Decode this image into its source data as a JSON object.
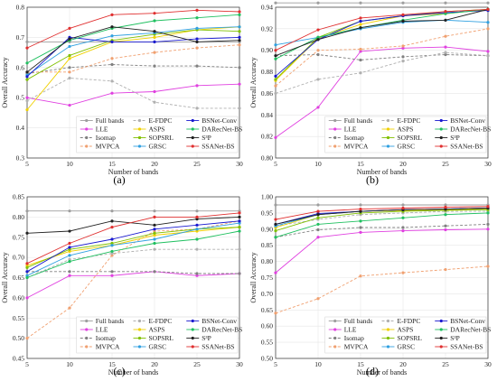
{
  "chart_data": [
    {
      "type": "line",
      "panel_label": "(a)",
      "xlabel": "Number of bands",
      "ylabel": "Overall Accuracy",
      "x": [
        5,
        10,
        15,
        20,
        25,
        30
      ],
      "xlim": [
        5,
        30
      ],
      "ylim": [
        0.3,
        0.8
      ],
      "yticks": [
        "0.3",
        "0.4",
        "0.5",
        "0.6",
        "0.7",
        "0.8"
      ],
      "series": [
        {
          "name": "Full bands",
          "color": "#9e9e9e",
          "dash": "",
          "values": [
            0.685,
            0.685,
            0.685,
            0.685,
            0.685,
            0.685
          ]
        },
        {
          "name": "LLE",
          "color": "#e040e0",
          "dash": "",
          "values": [
            0.5,
            0.475,
            0.515,
            0.52,
            0.54,
            0.545
          ]
        },
        {
          "name": "Isomap",
          "color": "#808080",
          "dash": "3,2",
          "values": [
            0.58,
            0.6,
            0.61,
            0.605,
            0.605,
            0.6
          ]
        },
        {
          "name": "MVPCA",
          "color": "#f0a070",
          "dash": "3,2",
          "values": [
            0.585,
            0.585,
            0.63,
            0.65,
            0.665,
            0.675
          ]
        },
        {
          "name": "E-FDPC",
          "color": "#b0b0b0",
          "dash": "3,2",
          "values": [
            0.49,
            0.565,
            0.555,
            0.485,
            0.465,
            0.465
          ]
        },
        {
          "name": "ASPS",
          "color": "#f0d000",
          "dash": "",
          "values": [
            0.46,
            0.63,
            0.685,
            0.7,
            0.725,
            0.735
          ]
        },
        {
          "name": "SOPSRL",
          "color": "#80c000",
          "dash": "",
          "values": [
            0.56,
            0.64,
            0.69,
            0.71,
            0.725,
            0.72
          ]
        },
        {
          "name": "GRSC",
          "color": "#30a0e0",
          "dash": "",
          "values": [
            0.575,
            0.67,
            0.705,
            0.715,
            0.73,
            0.735
          ]
        },
        {
          "name": "BSNet-Conv",
          "color": "#1a1ad0",
          "dash": "",
          "values": [
            0.57,
            0.7,
            0.685,
            0.685,
            0.695,
            0.7
          ]
        },
        {
          "name": "DARecNet-BS",
          "color": "#20c060",
          "dash": "",
          "values": [
            0.615,
            0.69,
            0.73,
            0.755,
            0.765,
            0.775
          ]
        },
        {
          "name": "S³P",
          "color": "#202020",
          "dash": "",
          "values": [
            0.585,
            0.695,
            0.735,
            0.72,
            0.685,
            0.69
          ]
        },
        {
          "name": "SSANet-BS",
          "color": "#e03030",
          "dash": "",
          "values": [
            0.665,
            0.73,
            0.775,
            0.78,
            0.79,
            0.785
          ]
        }
      ]
    },
    {
      "type": "line",
      "panel_label": "(b)",
      "xlabel": "Number of bands",
      "ylabel": "Overall Accuracy",
      "x": [
        5,
        10,
        15,
        20,
        25,
        30
      ],
      "xlim": [
        5,
        30
      ],
      "ylim": [
        0.8,
        0.94
      ],
      "yticks": [
        "0.80",
        "0.82",
        "0.84",
        "0.86",
        "0.88",
        "0.90",
        "0.92",
        "0.94"
      ],
      "series": [
        {
          "name": "Full bands",
          "color": "#9e9e9e",
          "dash": "",
          "values": [
            0.944,
            0.944,
            0.944,
            0.944,
            0.944,
            0.944
          ]
        },
        {
          "name": "LLE",
          "color": "#e040e0",
          "dash": "",
          "values": [
            0.819,
            0.847,
            0.899,
            0.902,
            0.903,
            0.899
          ]
        },
        {
          "name": "Isomap",
          "color": "#808080",
          "dash": "3,2",
          "values": [
            0.895,
            0.896,
            0.891,
            0.894,
            0.896,
            0.895
          ]
        },
        {
          "name": "MVPCA",
          "color": "#f0a070",
          "dash": "3,2",
          "values": [
            0.867,
            0.9,
            0.901,
            0.904,
            0.913,
            0.92
          ]
        },
        {
          "name": "E-FDPC",
          "color": "#b0b0b0",
          "dash": "3,2",
          "values": [
            0.86,
            0.873,
            0.879,
            0.89,
            0.898,
            0.895
          ]
        },
        {
          "name": "ASPS",
          "color": "#f0d000",
          "dash": "",
          "values": [
            0.872,
            0.911,
            0.924,
            0.932,
            0.934,
            0.938
          ]
        },
        {
          "name": "SOPSRL",
          "color": "#80c000",
          "dash": "",
          "values": [
            0.873,
            0.912,
            0.927,
            0.932,
            0.936,
            0.938
          ]
        },
        {
          "name": "GRSC",
          "color": "#30a0e0",
          "dash": "",
          "values": [
            0.905,
            0.912,
            0.92,
            0.926,
            0.928,
            0.926
          ]
        },
        {
          "name": "BSNet-Conv",
          "color": "#1a1ad0",
          "dash": "",
          "values": [
            0.876,
            0.91,
            0.927,
            0.932,
            0.935,
            0.937
          ]
        },
        {
          "name": "DARecNet-BS",
          "color": "#20c060",
          "dash": "",
          "values": [
            0.892,
            0.912,
            0.921,
            0.928,
            0.934,
            0.938
          ]
        },
        {
          "name": "S³P",
          "color": "#202020",
          "dash": "",
          "values": [
            0.895,
            0.91,
            0.921,
            0.927,
            0.928,
            0.938
          ]
        },
        {
          "name": "SSANet-BS",
          "color": "#e03030",
          "dash": "",
          "values": [
            0.9,
            0.919,
            0.93,
            0.933,
            0.936,
            0.938
          ]
        }
      ]
    },
    {
      "type": "line",
      "panel_label": "(c)",
      "xlabel": "Number of bands",
      "ylabel": "Overall Accuracy",
      "x": [
        5,
        10,
        15,
        20,
        25,
        30
      ],
      "xlim": [
        5,
        30
      ],
      "ylim": [
        0.45,
        0.85
      ],
      "yticks": [
        "0.45",
        "0.50",
        "0.55",
        "0.60",
        "0.65",
        "0.70",
        "0.75",
        "0.80",
        "0.85"
      ],
      "series": [
        {
          "name": "Full bands",
          "color": "#9e9e9e",
          "dash": "",
          "values": [
            0.815,
            0.815,
            0.815,
            0.815,
            0.815,
            0.815
          ]
        },
        {
          "name": "LLE",
          "color": "#e040e0",
          "dash": "",
          "values": [
            0.6,
            0.655,
            0.655,
            0.665,
            0.655,
            0.66
          ]
        },
        {
          "name": "Isomap",
          "color": "#808080",
          "dash": "3,2",
          "values": [
            0.665,
            0.665,
            0.665,
            0.665,
            0.66,
            0.66
          ]
        },
        {
          "name": "MVPCA",
          "color": "#f0a070",
          "dash": "3,2",
          "values": [
            0.5,
            0.575,
            0.705,
            0.765,
            0.77,
            0.79
          ]
        },
        {
          "name": "E-FDPC",
          "color": "#b0b0b0",
          "dash": "3,2",
          "values": [
            0.65,
            0.695,
            0.71,
            0.72,
            0.72,
            0.72
          ]
        },
        {
          "name": "ASPS",
          "color": "#f0d000",
          "dash": "",
          "values": [
            0.68,
            0.715,
            0.73,
            0.755,
            0.765,
            0.775
          ]
        },
        {
          "name": "SOPSRL",
          "color": "#80c000",
          "dash": "",
          "values": [
            0.675,
            0.72,
            0.735,
            0.76,
            0.77,
            0.775
          ]
        },
        {
          "name": "GRSC",
          "color": "#30a0e0",
          "dash": "",
          "values": [
            0.655,
            0.705,
            0.73,
            0.745,
            0.77,
            0.785
          ]
        },
        {
          "name": "BSNet-Conv",
          "color": "#1a1ad0",
          "dash": "",
          "values": [
            0.665,
            0.725,
            0.745,
            0.77,
            0.78,
            0.79
          ]
        },
        {
          "name": "DARecNet-BS",
          "color": "#20c060",
          "dash": "",
          "values": [
            0.65,
            0.69,
            0.715,
            0.735,
            0.745,
            0.765
          ]
        },
        {
          "name": "S³P",
          "color": "#202020",
          "dash": "",
          "values": [
            0.76,
            0.765,
            0.79,
            0.78,
            0.795,
            0.8
          ]
        },
        {
          "name": "SSANet-BS",
          "color": "#e03030",
          "dash": "",
          "values": [
            0.685,
            0.735,
            0.775,
            0.8,
            0.8,
            0.81
          ]
        }
      ]
    },
    {
      "type": "line",
      "panel_label": "(d)",
      "xlabel": "Number of bands",
      "ylabel": "Overall Accuracy",
      "x": [
        5,
        10,
        15,
        20,
        25,
        30
      ],
      "xlim": [
        5,
        30
      ],
      "ylim": [
        0.5,
        1.0
      ],
      "yticks": [
        "0.50",
        "0.55",
        "0.60",
        "0.65",
        "0.70",
        "0.75",
        "0.80",
        "0.85",
        "0.90",
        "0.95",
        "1.00"
      ],
      "series": [
        {
          "name": "Full bands",
          "color": "#9e9e9e",
          "dash": "",
          "values": [
            0.975,
            0.975,
            0.975,
            0.975,
            0.975,
            0.975
          ]
        },
        {
          "name": "LLE",
          "color": "#e040e0",
          "dash": "",
          "values": [
            0.765,
            0.875,
            0.89,
            0.895,
            0.898,
            0.9
          ]
        },
        {
          "name": "Isomap",
          "color": "#808080",
          "dash": "3,2",
          "values": [
            0.875,
            0.898,
            0.905,
            0.905,
            0.91,
            0.915
          ]
        },
        {
          "name": "MVPCA",
          "color": "#f0a070",
          "dash": "3,2",
          "values": [
            0.64,
            0.685,
            0.755,
            0.765,
            0.775,
            0.785
          ]
        },
        {
          "name": "E-FDPC",
          "color": "#b0b0b0",
          "dash": "3,2",
          "values": [
            0.91,
            0.93,
            0.945,
            0.95,
            0.955,
            0.955
          ]
        },
        {
          "name": "ASPS",
          "color": "#f0d000",
          "dash": "",
          "values": [
            0.905,
            0.945,
            0.955,
            0.958,
            0.96,
            0.962
          ]
        },
        {
          "name": "SOPSRL",
          "color": "#80c000",
          "dash": "",
          "values": [
            0.895,
            0.935,
            0.95,
            0.955,
            0.958,
            0.96
          ]
        },
        {
          "name": "GRSC",
          "color": "#30a0e0",
          "dash": "",
          "values": [
            0.91,
            0.945,
            0.955,
            0.96,
            0.962,
            0.965
          ]
        },
        {
          "name": "BSNet-Conv",
          "color": "#1a1ad0",
          "dash": "",
          "values": [
            0.915,
            0.948,
            0.955,
            0.96,
            0.962,
            0.965
          ]
        },
        {
          "name": "DARecNet-BS",
          "color": "#20c060",
          "dash": "",
          "values": [
            0.875,
            0.915,
            0.925,
            0.935,
            0.945,
            0.95
          ]
        },
        {
          "name": "S³P",
          "color": "#202020",
          "dash": "",
          "values": [
            0.915,
            0.945,
            0.955,
            0.96,
            0.962,
            0.965
          ]
        },
        {
          "name": "SSANet-BS",
          "color": "#e03030",
          "dash": "",
          "values": [
            0.93,
            0.955,
            0.962,
            0.965,
            0.968,
            0.97
          ]
        }
      ]
    }
  ]
}
